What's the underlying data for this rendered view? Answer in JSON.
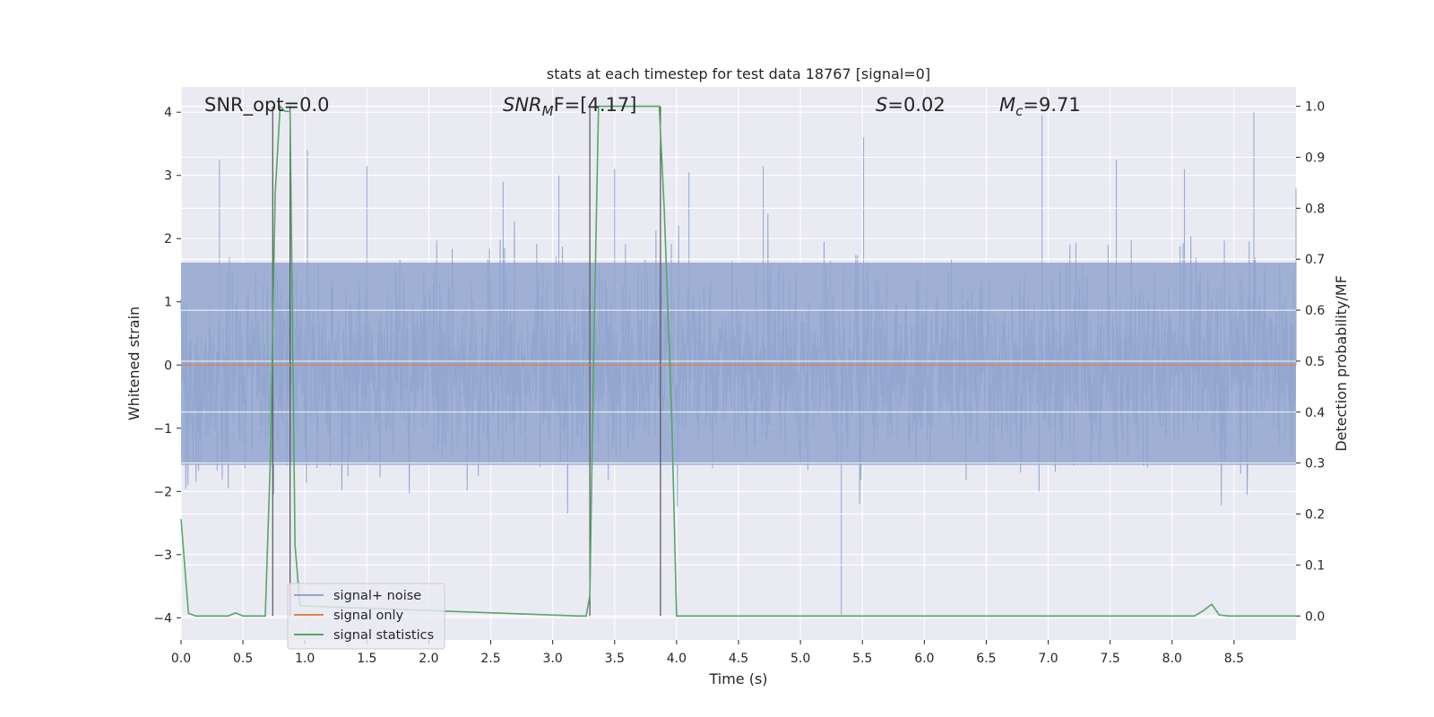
{
  "chart_data": {
    "type": "line",
    "title": "stats at each timestep for test data 18767 [signal=0]",
    "xlabel": "Time (s)",
    "ylabel": "Whitened strain",
    "y2label": "Detection probability/MF",
    "xlim": [
      0.0,
      9.0
    ],
    "ylim": [
      -4.35,
      4.4
    ],
    "y2lim": [
      -0.047,
      1.038
    ],
    "xticks": [
      "0.0",
      "0.5",
      "1.0",
      "1.5",
      "2.0",
      "2.5",
      "3.0",
      "3.5",
      "4.0",
      "4.5",
      "5.0",
      "5.5",
      "6.0",
      "6.5",
      "7.0",
      "7.5",
      "8.0",
      "8.5"
    ],
    "yticks": [
      "4",
      "3",
      "2",
      "1",
      "0",
      "−1",
      "−2",
      "−3",
      "−4"
    ],
    "y2ticks": [
      "1.0",
      "0.9",
      "0.8",
      "0.7",
      "0.6",
      "0.5",
      "0.4",
      "0.3",
      "0.2",
      "0.1",
      "0.0"
    ],
    "grid": true,
    "legend_position": "lower-left",
    "annotations": {
      "snr_opt": "SNR_opt=0.0",
      "snr_mf_base": "SNR",
      "snr_mf_sub": "M",
      "snr_mf_rest": "F=[4.17]",
      "s_sym": "S",
      "s_val": "=0.02",
      "mc_sym": "M",
      "mc_sub": "c",
      "mc_val": "=9.71"
    },
    "series": [
      {
        "name": "signal+ noise",
        "axis": "left",
        "color": "#92a6cf",
        "style": "dense noise, amplitude approx ±1.6 typical, peaks to 4.0 and -3.95",
        "peaks_x": [
          0.31,
          0.88,
          1.02,
          1.5,
          2.6,
          3.05,
          3.5,
          4.1,
          4.7,
          5.33,
          5.51,
          6.95,
          7.55,
          8.1,
          8.66,
          9.0
        ],
        "peaks_y": [
          3.25,
          3.62,
          3.4,
          3.15,
          2.9,
          3.0,
          3.1,
          3.05,
          3.15,
          -3.95,
          3.6,
          3.95,
          3.25,
          3.1,
          4.0,
          2.8
        ]
      },
      {
        "name": "signal only",
        "axis": "left",
        "color": "#dd8452",
        "x": [
          0.0,
          9.0
        ],
        "y": [
          0.0,
          0.0
        ]
      },
      {
        "name": "signal statistics",
        "axis": "right",
        "color": "#55a868",
        "x": [
          0.0,
          0.06,
          0.12,
          0.2,
          0.3,
          0.38,
          0.44,
          0.5,
          0.58,
          0.68,
          0.72,
          0.76,
          0.8,
          0.84,
          0.88,
          0.92,
          0.96,
          3.2,
          3.27,
          3.3,
          3.33,
          3.37,
          3.8,
          3.84,
          3.86,
          3.9,
          3.96,
          4.0,
          4.06,
          8.18,
          8.25,
          8.32,
          8.38,
          8.46,
          9.0
        ],
        "y": [
          0.19,
          0.005,
          0.0,
          0.0,
          0.0,
          0.0,
          0.006,
          0.0,
          0.0,
          0.0,
          0.3,
          0.83,
          1.0,
          0.99,
          0.99,
          0.14,
          0.02,
          0.0,
          0.0,
          0.04,
          0.5,
          1.0,
          1.0,
          1.0,
          1.0,
          0.8,
          0.4,
          0.0,
          0.0,
          0.0,
          0.01,
          0.023,
          0.002,
          0.0,
          0.0
        ]
      }
    ],
    "vertical_markers": [
      0.74,
      0.88,
      3.3,
      3.87
    ]
  }
}
